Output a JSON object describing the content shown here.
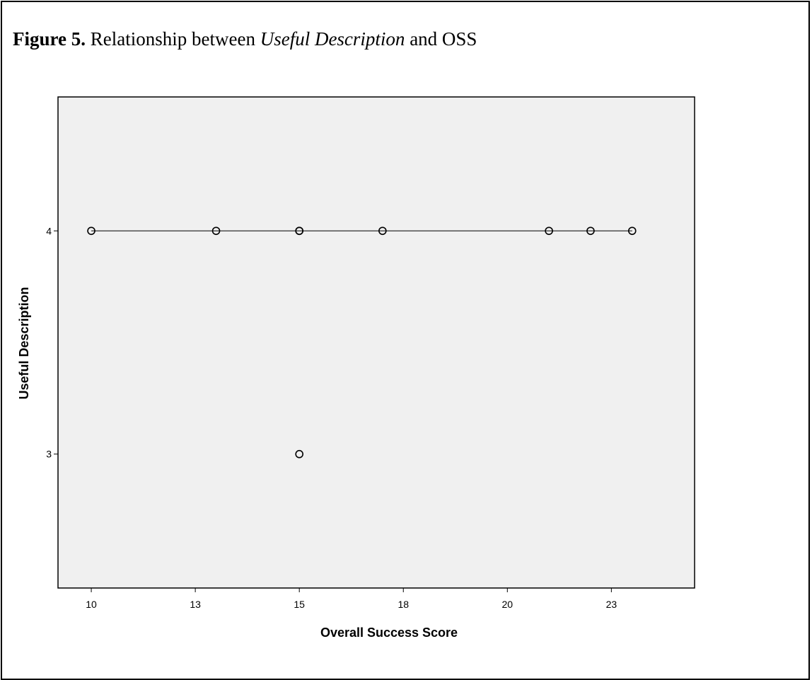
{
  "caption": {
    "label": "Figure 5.",
    "text_before": " Relationship between ",
    "italic": "Useful Description",
    "text_after": " and OSS"
  },
  "chart_data": {
    "type": "scatter",
    "xlabel": "Overall Success Score",
    "ylabel": "Useful Description",
    "xlim": [
      9.2,
      24.5
    ],
    "ylim": [
      2.4,
      4.6
    ],
    "x_ticks": [
      10,
      12.5,
      15,
      17.5,
      20,
      22.5
    ],
    "x_tick_labels": [
      "10",
      "13",
      "15",
      "18",
      "20",
      "23"
    ],
    "y_ticks": [
      3,
      4
    ],
    "y_tick_labels": [
      "3",
      "4"
    ],
    "points": [
      {
        "x": 10,
        "y": 4
      },
      {
        "x": 13,
        "y": 4
      },
      {
        "x": 15,
        "y": 4
      },
      {
        "x": 15,
        "y": 4
      },
      {
        "x": 17,
        "y": 4
      },
      {
        "x": 21,
        "y": 4
      },
      {
        "x": 22,
        "y": 4
      },
      {
        "x": 23,
        "y": 4
      },
      {
        "x": 15,
        "y": 3
      }
    ],
    "fit_line": [
      {
        "x": 10,
        "y": 4
      },
      {
        "x": 23,
        "y": 4
      }
    ],
    "plot_background": "#f0f0f0",
    "marker": "open-circle",
    "grid": false,
    "legend": false
  }
}
